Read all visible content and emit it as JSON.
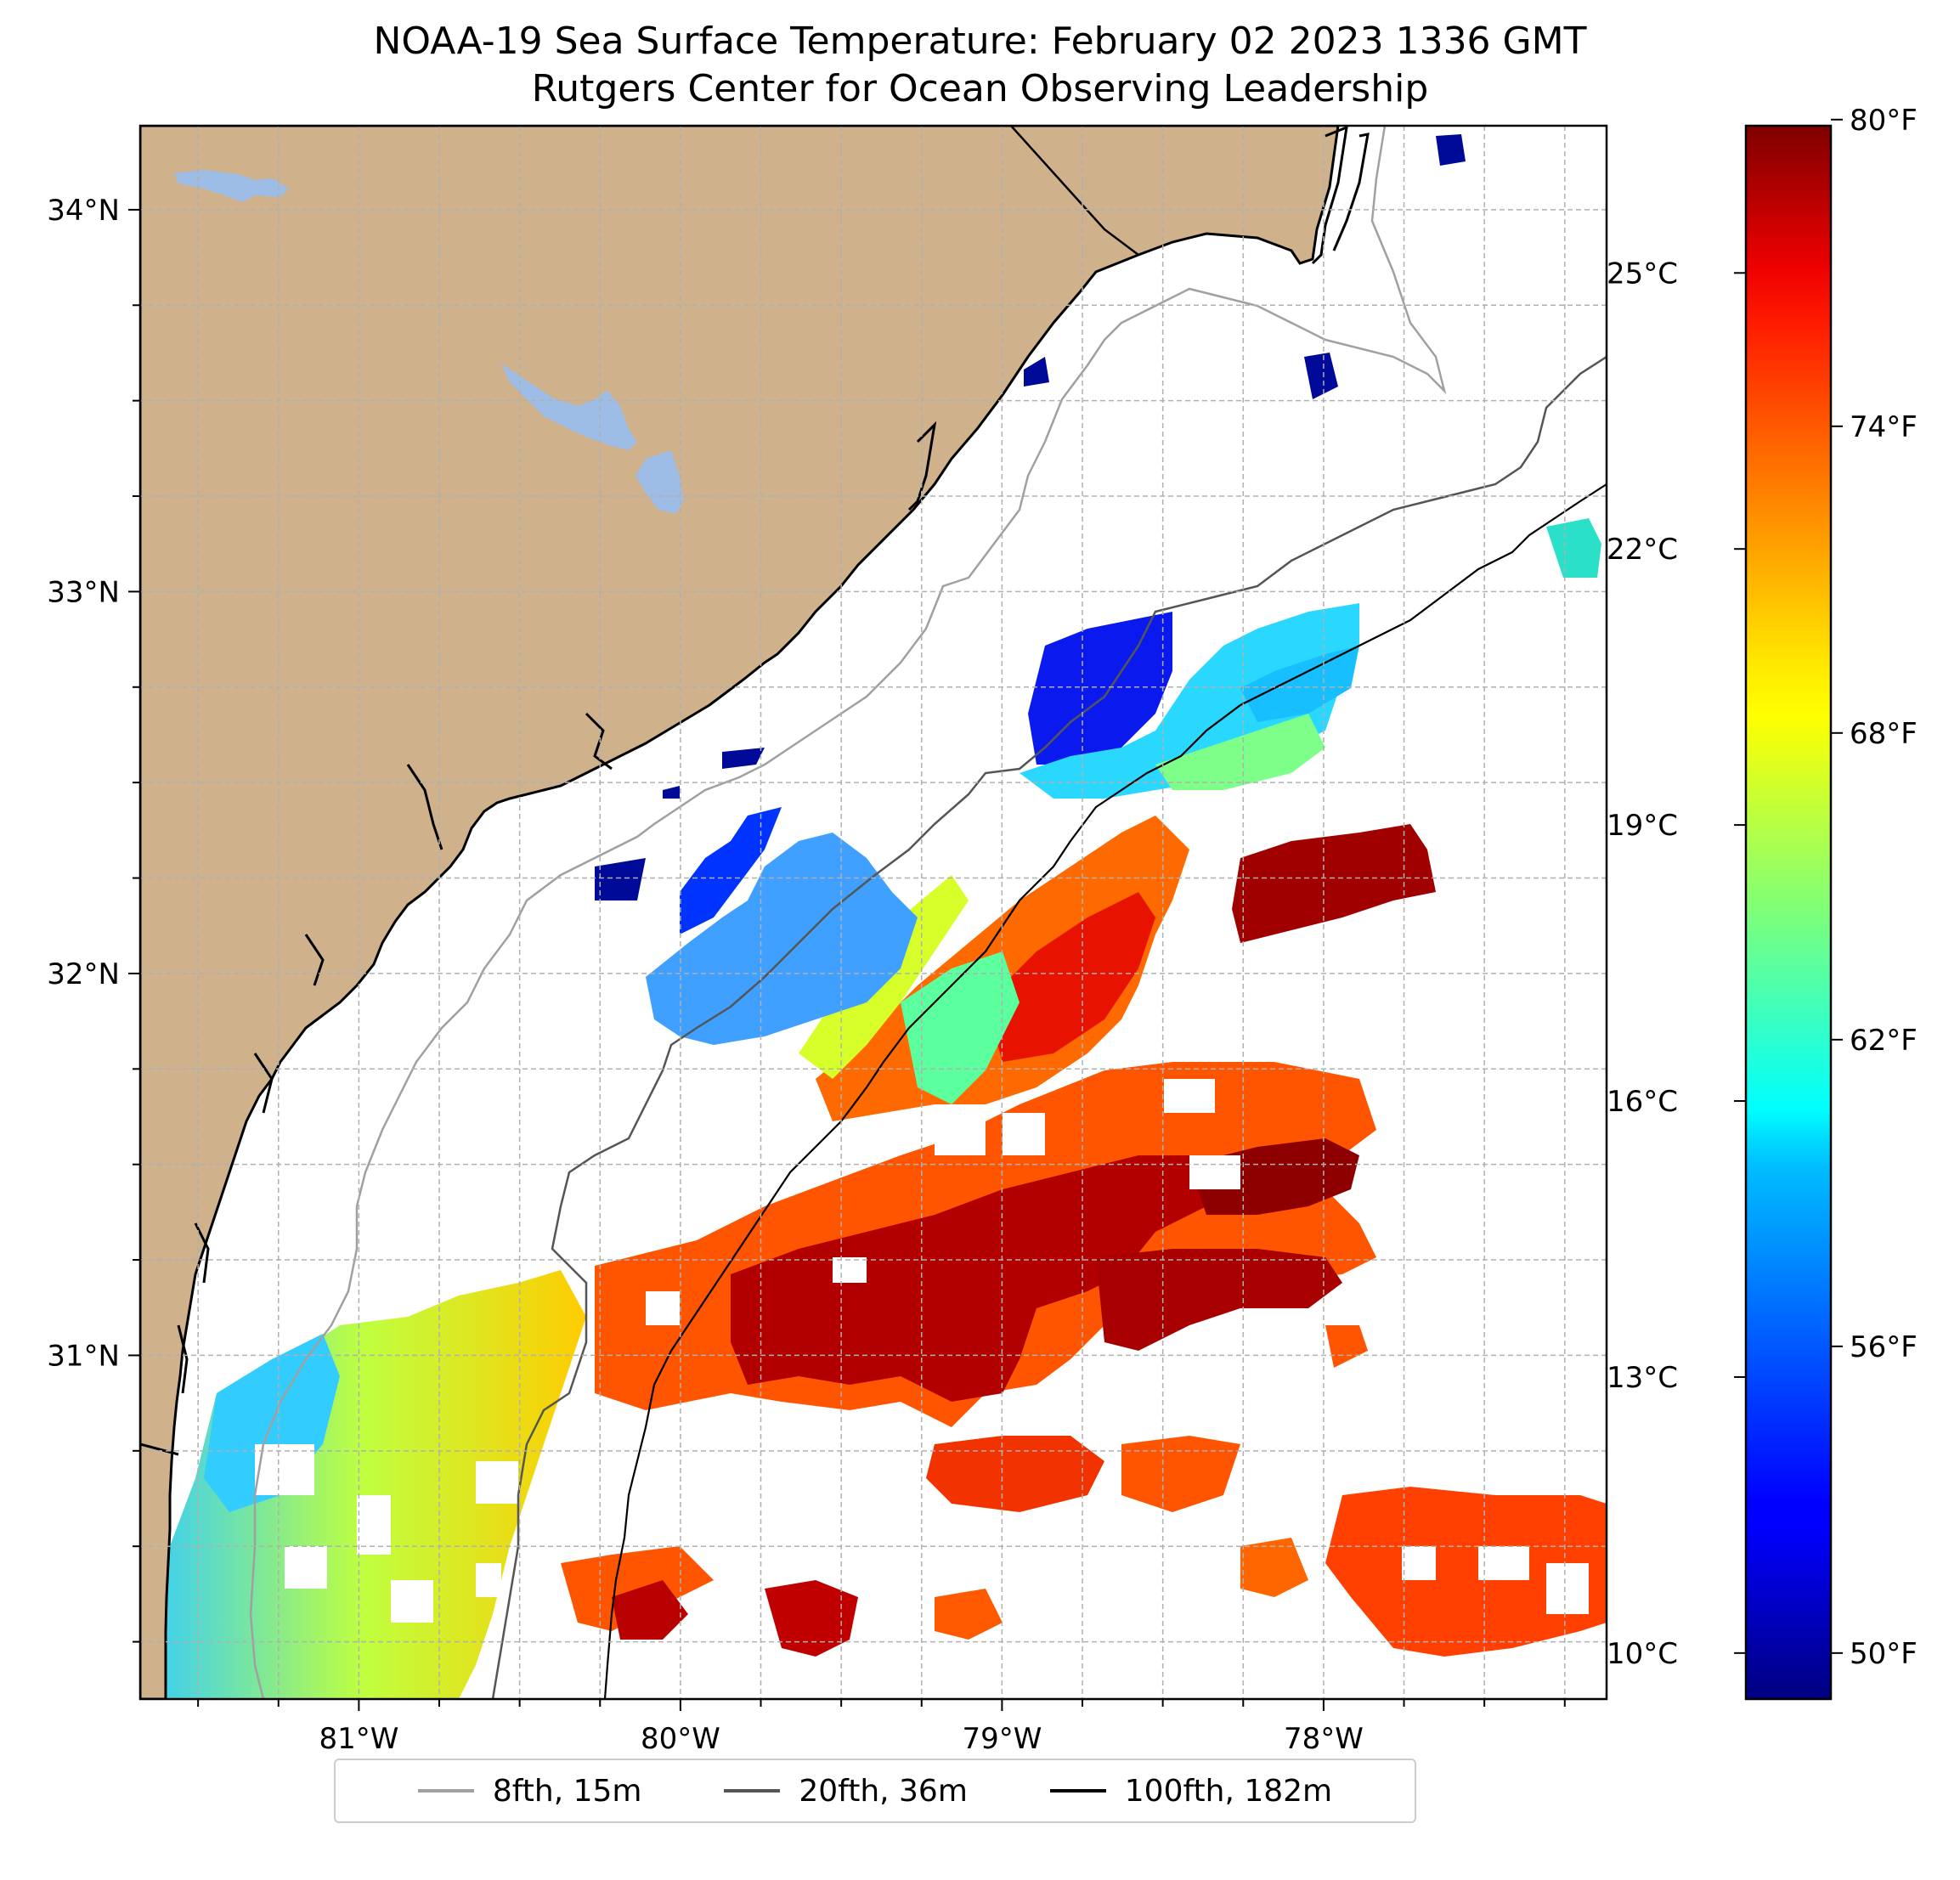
{
  "title": "NOAA-19 Sea Surface Temperature: February 02 2023 1336 GMT",
  "subtitle": "Rutgers Center for Ocean Observing Leadership",
  "colors": {
    "land": "#cfb18b",
    "lakes": "#9dbce6",
    "contour_8fth": "#a0a0a0",
    "contour_20fth": "#555555",
    "contour_100fth": "#000000",
    "gridline": "#b0b0b0"
  },
  "map": {
    "lon_range": [
      -81.68,
      -77.12
    ],
    "lat_range": [
      30.1,
      34.22
    ],
    "lon_ticks": [
      {
        "value": -81,
        "label": "81°W"
      },
      {
        "value": -80,
        "label": "80°W"
      },
      {
        "value": -79,
        "label": "79°W"
      },
      {
        "value": -78,
        "label": "78°W"
      }
    ],
    "lat_ticks": [
      {
        "value": 34,
        "label": "34°N"
      },
      {
        "value": 33,
        "label": "33°N"
      },
      {
        "value": 32,
        "label": "32°N"
      },
      {
        "value": 31,
        "label": "31°N"
      }
    ]
  },
  "colorbar": {
    "colormap": "jet",
    "range_c": [
      9.5,
      26.6
    ],
    "celsius_ticks": [
      {
        "value": 10,
        "label": "10°C"
      },
      {
        "value": 13,
        "label": "13°C"
      },
      {
        "value": 16,
        "label": "16°C"
      },
      {
        "value": 19,
        "label": "19°C"
      },
      {
        "value": 22,
        "label": "22°C"
      },
      {
        "value": 25,
        "label": "25°C"
      }
    ],
    "fahrenheit_ticks": [
      {
        "value": 50,
        "label": "50°F"
      },
      {
        "value": 56,
        "label": "56°F"
      },
      {
        "value": 62,
        "label": "62°F"
      },
      {
        "value": 68,
        "label": "68°F"
      },
      {
        "value": 74,
        "label": "74°F"
      },
      {
        "value": 80,
        "label": "80°F"
      }
    ]
  },
  "legend": {
    "placement": "bottom-center",
    "items": [
      {
        "label": "8fth, 15m",
        "color": "#a0a0a0"
      },
      {
        "label": "20fth, 36m",
        "color": "#555555"
      },
      {
        "label": "100fth, 182m",
        "color": "#000000"
      }
    ]
  }
}
